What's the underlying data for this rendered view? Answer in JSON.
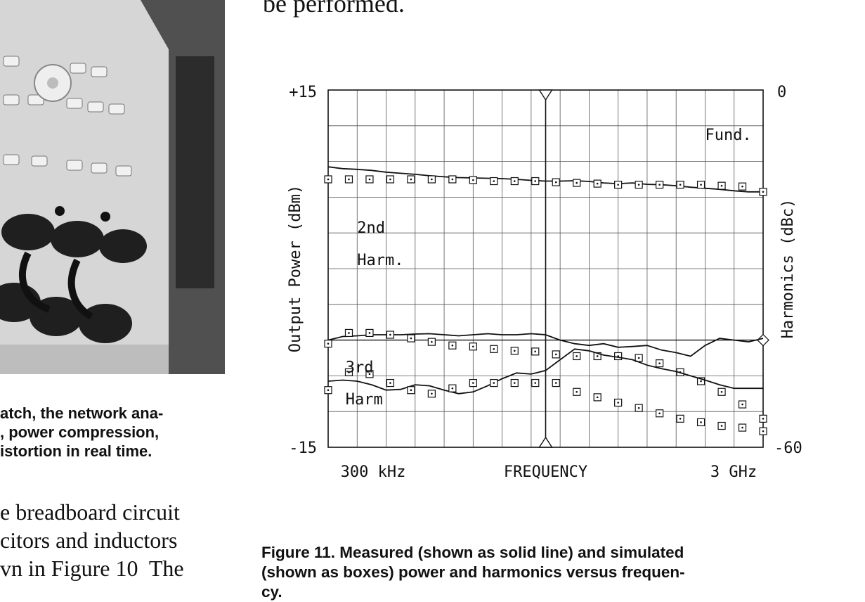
{
  "page": {
    "top_text": "be performed.",
    "left_caption_lines": [
      "atch, the network ana-",
      ", power compression,",
      "istortion in real time."
    ],
    "body_text_lines": [
      "e breadboard circuit",
      "citors and inductors",
      "vn in Figure 10  The"
    ],
    "figure_caption_lines": [
      "Figure 11. Measured (shown as solid line) and simulated",
      "(shown as boxes) power and harmonics versus frequen-",
      "cy."
    ]
  },
  "chart_data": {
    "type": "line",
    "x_label_left": "300 kHz",
    "x_label_center": "FREQUENCY",
    "x_label_right": "3 GHz",
    "ylabel_left": "Output Power (dBm)",
    "ylabel_right": "Harmonics (dBc)",
    "y_left_ticks": [
      "+15",
      "-15"
    ],
    "y_right_ticks": [
      "0",
      "-60"
    ],
    "y_left_range": [
      -15,
      15
    ],
    "y_right_range": [
      -60,
      0
    ],
    "x_divisions": 15,
    "y_divisions": 10,
    "grid": true,
    "annotations": [
      {
        "text": "Fund.",
        "gx": 13.0,
        "gy": 8.6
      },
      {
        "text": "2nd",
        "gx": 1.0,
        "gy": 6.0
      },
      {
        "text": "Harm.",
        "gx": 1.0,
        "gy": 5.1
      },
      {
        "text": "3rd",
        "gx": 0.6,
        "gy": 2.1
      },
      {
        "text": "Harm",
        "gx": 0.6,
        "gy": 1.2
      }
    ],
    "series": [
      {
        "name": "Fund.",
        "measured_gy": [
          7.85,
          7.8,
          7.78,
          7.75,
          7.7,
          7.67,
          7.64,
          7.6,
          7.57,
          7.55,
          7.54,
          7.53,
          7.52,
          7.5,
          7.47,
          7.45,
          7.45,
          7.46,
          7.44,
          7.4,
          7.38,
          7.4,
          7.36,
          7.35,
          7.32,
          7.28,
          7.25,
          7.22,
          7.18,
          7.15,
          7.15
        ],
        "simulated_gy": [
          7.5,
          7.5,
          7.5,
          7.5,
          7.5,
          7.5,
          7.5,
          7.48,
          7.45,
          7.45,
          7.45,
          7.42,
          7.4,
          7.38,
          7.35,
          7.35,
          7.35,
          7.35,
          7.35,
          7.32,
          7.3,
          7.15
        ]
      },
      {
        "name": "2nd Harm.",
        "measured_gy": [
          3.0,
          3.1,
          3.12,
          3.15,
          3.15,
          3.15,
          3.17,
          3.18,
          3.15,
          3.12,
          3.15,
          3.18,
          3.15,
          3.15,
          3.18,
          3.15,
          3.0,
          2.9,
          2.85,
          2.9,
          2.8,
          2.82,
          2.85,
          2.72,
          2.65,
          2.55,
          2.85,
          3.05,
          3.0,
          2.95,
          3.05
        ],
        "simulated_gy": [
          2.9,
          3.2,
          3.2,
          3.15,
          3.05,
          2.95,
          2.85,
          2.82,
          2.75,
          2.7,
          2.68,
          2.6,
          2.55,
          2.55,
          2.55,
          2.5,
          2.35,
          2.1,
          1.85,
          1.55,
          1.2,
          0.8
        ]
      },
      {
        "name": "3rd Harm",
        "measured_gy": [
          1.85,
          1.88,
          1.85,
          1.75,
          1.6,
          1.62,
          1.75,
          1.72,
          1.6,
          1.5,
          1.55,
          1.72,
          1.92,
          2.08,
          2.05,
          2.15,
          2.45,
          2.75,
          2.7,
          2.58,
          2.52,
          2.45,
          2.3,
          2.2,
          2.12,
          2.0,
          1.88,
          1.75,
          1.65,
          1.65,
          1.65
        ],
        "simulated_gy": [
          1.6,
          2.1,
          2.05,
          1.8,
          1.6,
          1.5,
          1.65,
          1.8,
          1.8,
          1.8,
          1.8,
          1.8,
          1.55,
          1.4,
          1.25,
          1.1,
          0.95,
          0.8,
          0.7,
          0.6,
          0.55,
          0.45
        ]
      }
    ]
  }
}
